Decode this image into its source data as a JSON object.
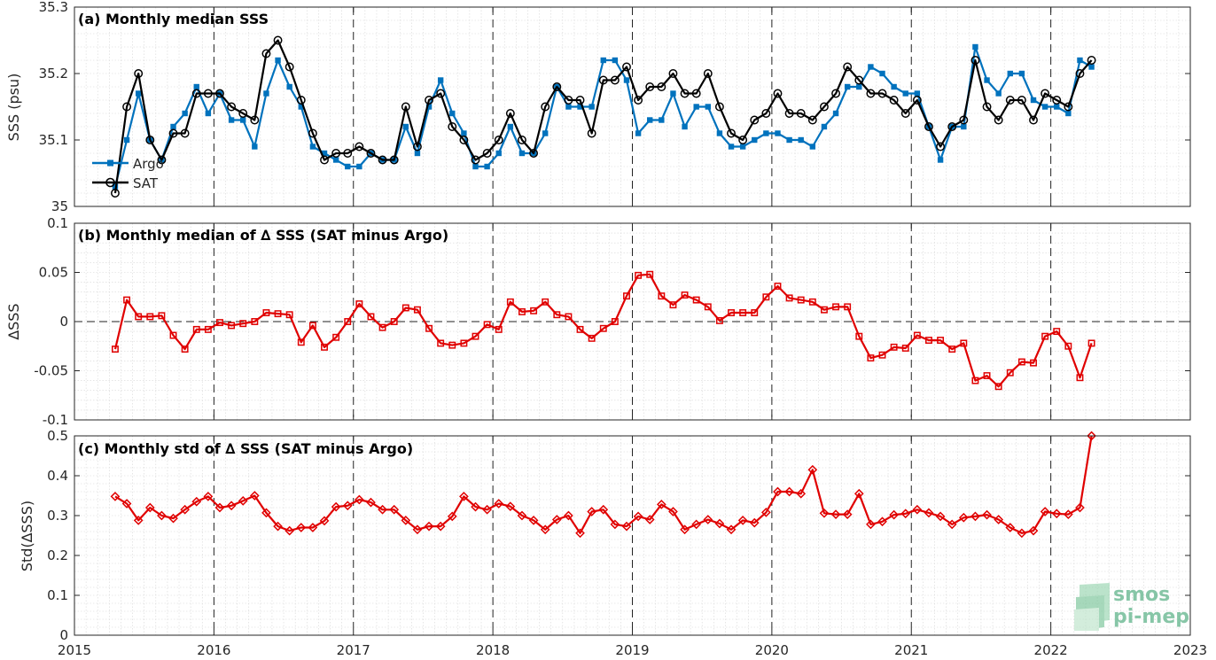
{
  "chart_data": [
    {
      "type": "line",
      "title": "(a) Monthly median SSS",
      "ylabel": "SSS (psu)",
      "xlim": [
        2015,
        2023
      ],
      "ylim": [
        35,
        35.3
      ],
      "yticks": [
        35,
        35.1,
        35.2,
        35.3
      ],
      "ytick_labels": [
        "35",
        "35.1",
        "35.2",
        "35.3"
      ],
      "grid": true,
      "legend_position": "left",
      "series": [
        {
          "name": "Argo",
          "color": "#0072BD",
          "marker": "square-filled",
          "values": [
            35.03,
            35.1,
            35.17,
            35.1,
            35.07,
            35.12,
            35.14,
            35.18,
            35.14,
            35.17,
            35.13,
            35.13,
            35.09,
            35.17,
            35.22,
            35.18,
            35.15,
            35.09,
            35.08,
            35.07,
            35.06,
            35.06,
            35.08,
            35.07,
            35.07,
            35.12,
            35.08,
            35.15,
            35.19,
            35.14,
            35.11,
            35.06,
            35.06,
            35.08,
            35.12,
            35.08,
            35.08,
            35.11,
            35.18,
            35.15,
            35.15,
            35.15,
            35.22,
            35.22,
            35.19,
            35.11,
            35.13,
            35.13,
            35.17,
            35.12,
            35.15,
            35.15,
            35.11,
            35.09,
            35.09,
            35.1,
            35.11,
            35.11,
            35.1,
            35.1,
            35.09,
            35.12,
            35.14,
            35.18,
            35.18,
            35.21,
            35.2,
            35.18,
            35.17,
            35.17,
            35.12,
            35.07,
            35.12,
            35.12,
            35.24,
            35.19,
            35.17,
            35.2,
            35.2,
            35.16,
            35.15,
            35.15,
            35.14,
            35.22,
            35.21
          ]
        },
        {
          "name": "SAT",
          "color": "#000000",
          "marker": "circle-open",
          "values": [
            35.02,
            35.15,
            35.2,
            35.1,
            35.07,
            35.11,
            35.11,
            35.17,
            35.17,
            35.17,
            35.15,
            35.14,
            35.13,
            35.23,
            35.25,
            35.21,
            35.16,
            35.11,
            35.07,
            35.08,
            35.08,
            35.09,
            35.08,
            35.07,
            35.07,
            35.15,
            35.09,
            35.16,
            35.17,
            35.12,
            35.1,
            35.07,
            35.08,
            35.1,
            35.14,
            35.1,
            35.08,
            35.15,
            35.18,
            35.16,
            35.16,
            35.11,
            35.19,
            35.19,
            35.21,
            35.16,
            35.18,
            35.18,
            35.2,
            35.17,
            35.17,
            35.2,
            35.15,
            35.11,
            35.1,
            35.13,
            35.14,
            35.17,
            35.14,
            35.14,
            35.13,
            35.15,
            35.17,
            35.21,
            35.19,
            35.17,
            35.17,
            35.16,
            35.14,
            35.16,
            35.12,
            35.09,
            35.12,
            35.13,
            35.22,
            35.15,
            35.13,
            35.16,
            35.16,
            35.13,
            35.17,
            35.16,
            35.15,
            35.2,
            35.22
          ]
        }
      ]
    },
    {
      "type": "line",
      "title": "(b) Monthly median of ∆ SSS (SAT minus Argo)",
      "ylabel": "∆SSS",
      "xlim": [
        2015,
        2023
      ],
      "ylim": [
        -0.1,
        0.1
      ],
      "yticks": [
        -0.1,
        -0.05,
        0,
        0.05,
        0.1
      ],
      "ytick_labels": [
        "-0.1",
        "-0.05",
        "0",
        "0.05",
        "0.1"
      ],
      "grid": true,
      "reference_line": 0,
      "series": [
        {
          "color": "#E00000",
          "marker": "square-open",
          "values": [
            -0.028,
            0.022,
            0.005,
            0.005,
            0.006,
            -0.014,
            -0.028,
            -0.008,
            -0.008,
            -0.001,
            -0.004,
            -0.002,
            0.0,
            0.009,
            0.008,
            0.007,
            -0.021,
            -0.004,
            -0.026,
            -0.016,
            0.0,
            0.018,
            0.005,
            -0.006,
            0.0,
            0.014,
            0.012,
            -0.007,
            -0.022,
            -0.024,
            -0.022,
            -0.015,
            -0.003,
            -0.008,
            0.02,
            0.01,
            0.011,
            0.02,
            0.007,
            0.005,
            -0.008,
            -0.017,
            -0.007,
            0.0,
            0.026,
            0.047,
            0.048,
            0.026,
            0.017,
            0.027,
            0.022,
            0.015,
            0.001,
            0.009,
            0.009,
            0.009,
            0.025,
            0.036,
            0.024,
            0.022,
            0.02,
            0.012,
            0.015,
            0.015,
            -0.015,
            -0.037,
            -0.034,
            -0.026,
            -0.027,
            -0.014,
            -0.019,
            -0.019,
            -0.028,
            -0.022,
            -0.06,
            -0.055,
            -0.066,
            -0.052,
            -0.041,
            -0.042,
            -0.015,
            -0.01,
            -0.025,
            -0.057,
            -0.022
          ]
        }
      ]
    },
    {
      "type": "line",
      "title": "(c) Monthly std of ∆ SSS (SAT minus Argo)",
      "ylabel": "Std(∆SSS)",
      "xlim": [
        2015,
        2023
      ],
      "ylim": [
        0,
        0.5
      ],
      "yticks": [
        0,
        0.1,
        0.2,
        0.3,
        0.4,
        0.5
      ],
      "ytick_labels": [
        "0",
        "0.1",
        "0.2",
        "0.3",
        "0.4",
        "0.5"
      ],
      "xticks": [
        2015,
        2016,
        2017,
        2018,
        2019,
        2020,
        2021,
        2022,
        2023
      ],
      "xtick_labels": [
        "2015",
        "2016",
        "2017",
        "2018",
        "2019",
        "2020",
        "2021",
        "2022",
        "2023"
      ],
      "grid": true,
      "series": [
        {
          "color": "#E00000",
          "marker": "diamond-open",
          "values": [
            0.348,
            0.33,
            0.288,
            0.32,
            0.3,
            0.293,
            0.315,
            0.335,
            0.348,
            0.32,
            0.325,
            0.337,
            0.35,
            0.307,
            0.273,
            0.262,
            0.27,
            0.27,
            0.287,
            0.322,
            0.325,
            0.34,
            0.333,
            0.315,
            0.315,
            0.288,
            0.265,
            0.273,
            0.273,
            0.298,
            0.348,
            0.322,
            0.315,
            0.33,
            0.323,
            0.3,
            0.288,
            0.265,
            0.29,
            0.3,
            0.256,
            0.31,
            0.315,
            0.278,
            0.273,
            0.298,
            0.29,
            0.328,
            0.31,
            0.265,
            0.278,
            0.29,
            0.28,
            0.265,
            0.288,
            0.282,
            0.308,
            0.36,
            0.36,
            0.355,
            0.415,
            0.306,
            0.303,
            0.303,
            0.355,
            0.278,
            0.285,
            0.302,
            0.305,
            0.315,
            0.307,
            0.298,
            0.278,
            0.295,
            0.298,
            0.302,
            0.29,
            0.27,
            0.256,
            0.262,
            0.31,
            0.305,
            0.303,
            0.32,
            0.5
          ]
        }
      ]
    }
  ],
  "x_start": 2015.292,
  "x_step": 0.0833333,
  "dashed_years": [
    2016,
    2017,
    2018,
    2019,
    2020,
    2021,
    2022
  ],
  "logo": {
    "line1": "smos",
    "line2": "pi-mep"
  }
}
